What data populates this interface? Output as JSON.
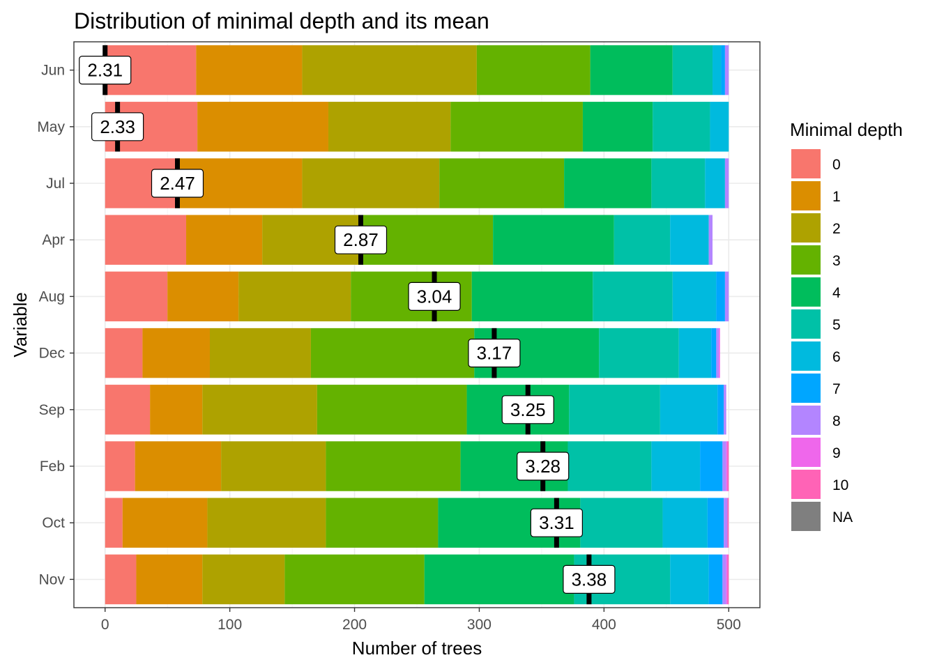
{
  "chart_data": {
    "type": "bar",
    "orientation": "horizontal",
    "stacked": true,
    "title": "Distribution of minimal depth and its mean",
    "xlabel": "Number of trees",
    "ylabel": "Variable",
    "xlim": [
      -25,
      525
    ],
    "xticks": [
      0,
      100,
      200,
      300,
      400,
      500
    ],
    "categories": [
      "Jun",
      "May",
      "Jul",
      "Apr",
      "Aug",
      "Dec",
      "Sep",
      "Feb",
      "Oct",
      "Nov"
    ],
    "means": [
      2.31,
      2.33,
      2.47,
      2.87,
      3.04,
      3.17,
      3.25,
      3.28,
      3.31,
      3.38
    ],
    "mean_positions": [
      0,
      10,
      58,
      205,
      264,
      312,
      339,
      351,
      362,
      388
    ],
    "legend": {
      "title": "Minimal depth",
      "placement": "right",
      "labels": [
        "0",
        "1",
        "2",
        "3",
        "4",
        "5",
        "6",
        "7",
        "8",
        "9",
        "10",
        "NA"
      ]
    },
    "colors": [
      "#F8766D",
      "#DB8E00",
      "#AEA200",
      "#64B200",
      "#00BD5C",
      "#00C1A7",
      "#00BADE",
      "#00A6FF",
      "#B385FF",
      "#EF67EB",
      "#FF63B6",
      "#7F7F7F"
    ],
    "grid": true,
    "series": [
      {
        "name": "0",
        "values": [
          73,
          74,
          58,
          65,
          50,
          30,
          36,
          24,
          14,
          25
        ]
      },
      {
        "name": "1",
        "values": [
          85,
          105,
          100,
          61,
          57,
          54,
          42,
          69,
          68,
          53
        ]
      },
      {
        "name": "2",
        "values": [
          140,
          98,
          110,
          78,
          90,
          81,
          92,
          84,
          95,
          66
        ]
      },
      {
        "name": "3",
        "values": [
          91,
          106,
          100,
          107,
          97,
          131,
          120,
          108,
          90,
          112
        ]
      },
      {
        "name": "4",
        "values": [
          66,
          56,
          70,
          97,
          97,
          100,
          82,
          86,
          114,
          120
        ]
      },
      {
        "name": "5",
        "values": [
          32,
          46,
          43,
          45,
          64,
          64,
          73,
          67,
          66,
          77
        ]
      },
      {
        "name": "6",
        "values": [
          7,
          15,
          16,
          31,
          35,
          26,
          46,
          39,
          36,
          31
        ]
      },
      {
        "name": "7",
        "values": [
          3,
          0,
          0,
          0,
          7,
          4,
          5,
          18,
          13,
          11
        ]
      },
      {
        "name": "8",
        "values": [
          3,
          0,
          3,
          3,
          3,
          2,
          2,
          3,
          3,
          3
        ]
      },
      {
        "name": "9",
        "values": [
          0,
          0,
          0,
          0,
          0,
          1,
          0,
          1,
          0,
          1
        ]
      },
      {
        "name": "10",
        "values": [
          0,
          0,
          0,
          0,
          0,
          0,
          0,
          1,
          1,
          1
        ]
      },
      {
        "name": "NA",
        "values": [
          0,
          0,
          0,
          0,
          0,
          0,
          0,
          0,
          0,
          0
        ]
      }
    ]
  }
}
